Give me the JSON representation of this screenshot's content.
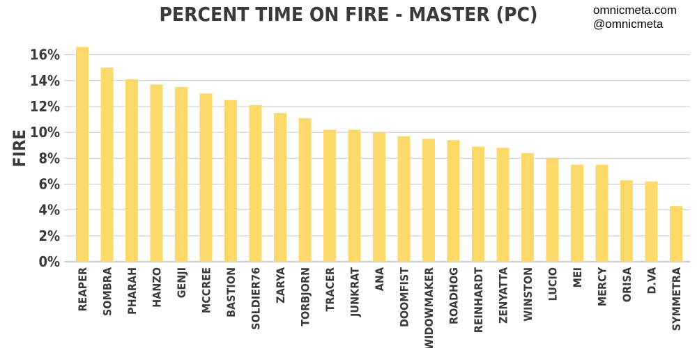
{
  "chart_data": {
    "type": "bar",
    "title": "PERCENT TIME ON FIRE - MASTER (PC)",
    "ylabel": "FIRE",
    "xlabel": "",
    "categories": [
      "REAPER",
      "SOMBRA",
      "PHARAH",
      "HANZO",
      "GENJI",
      "MCCREE",
      "BASTION",
      "SOLDIER76",
      "ZARYA",
      "TORBJORN",
      "TRACER",
      "JUNKRAT",
      "ANA",
      "DOOMFIST",
      "WIDOWMAKER",
      "ROADHOG",
      "REINHARDT",
      "ZENYATTA",
      "WINSTON",
      "LUCIO",
      "MEI",
      "MERCY",
      "ORISA",
      "D.VA",
      "SYMMETRA"
    ],
    "values": [
      16.6,
      15.0,
      14.1,
      13.7,
      13.5,
      13.0,
      12.5,
      12.1,
      11.5,
      11.1,
      10.2,
      10.2,
      10.0,
      9.7,
      9.5,
      9.4,
      8.9,
      8.8,
      8.4,
      8.0,
      7.5,
      7.5,
      6.3,
      6.2,
      4.3
    ],
    "yticks": [
      0,
      2,
      4,
      6,
      8,
      10,
      12,
      14,
      16
    ],
    "ytick_labels": [
      "0%",
      "2%",
      "4%",
      "6%",
      "8%",
      "10%",
      "12%",
      "14%",
      "16%"
    ],
    "ylim": [
      0,
      17
    ],
    "grid": true,
    "bar_color": "#fdd96a",
    "legend": "none"
  },
  "watermark": {
    "site": "omnicmeta.com",
    "handle": "@omnicmeta"
  }
}
